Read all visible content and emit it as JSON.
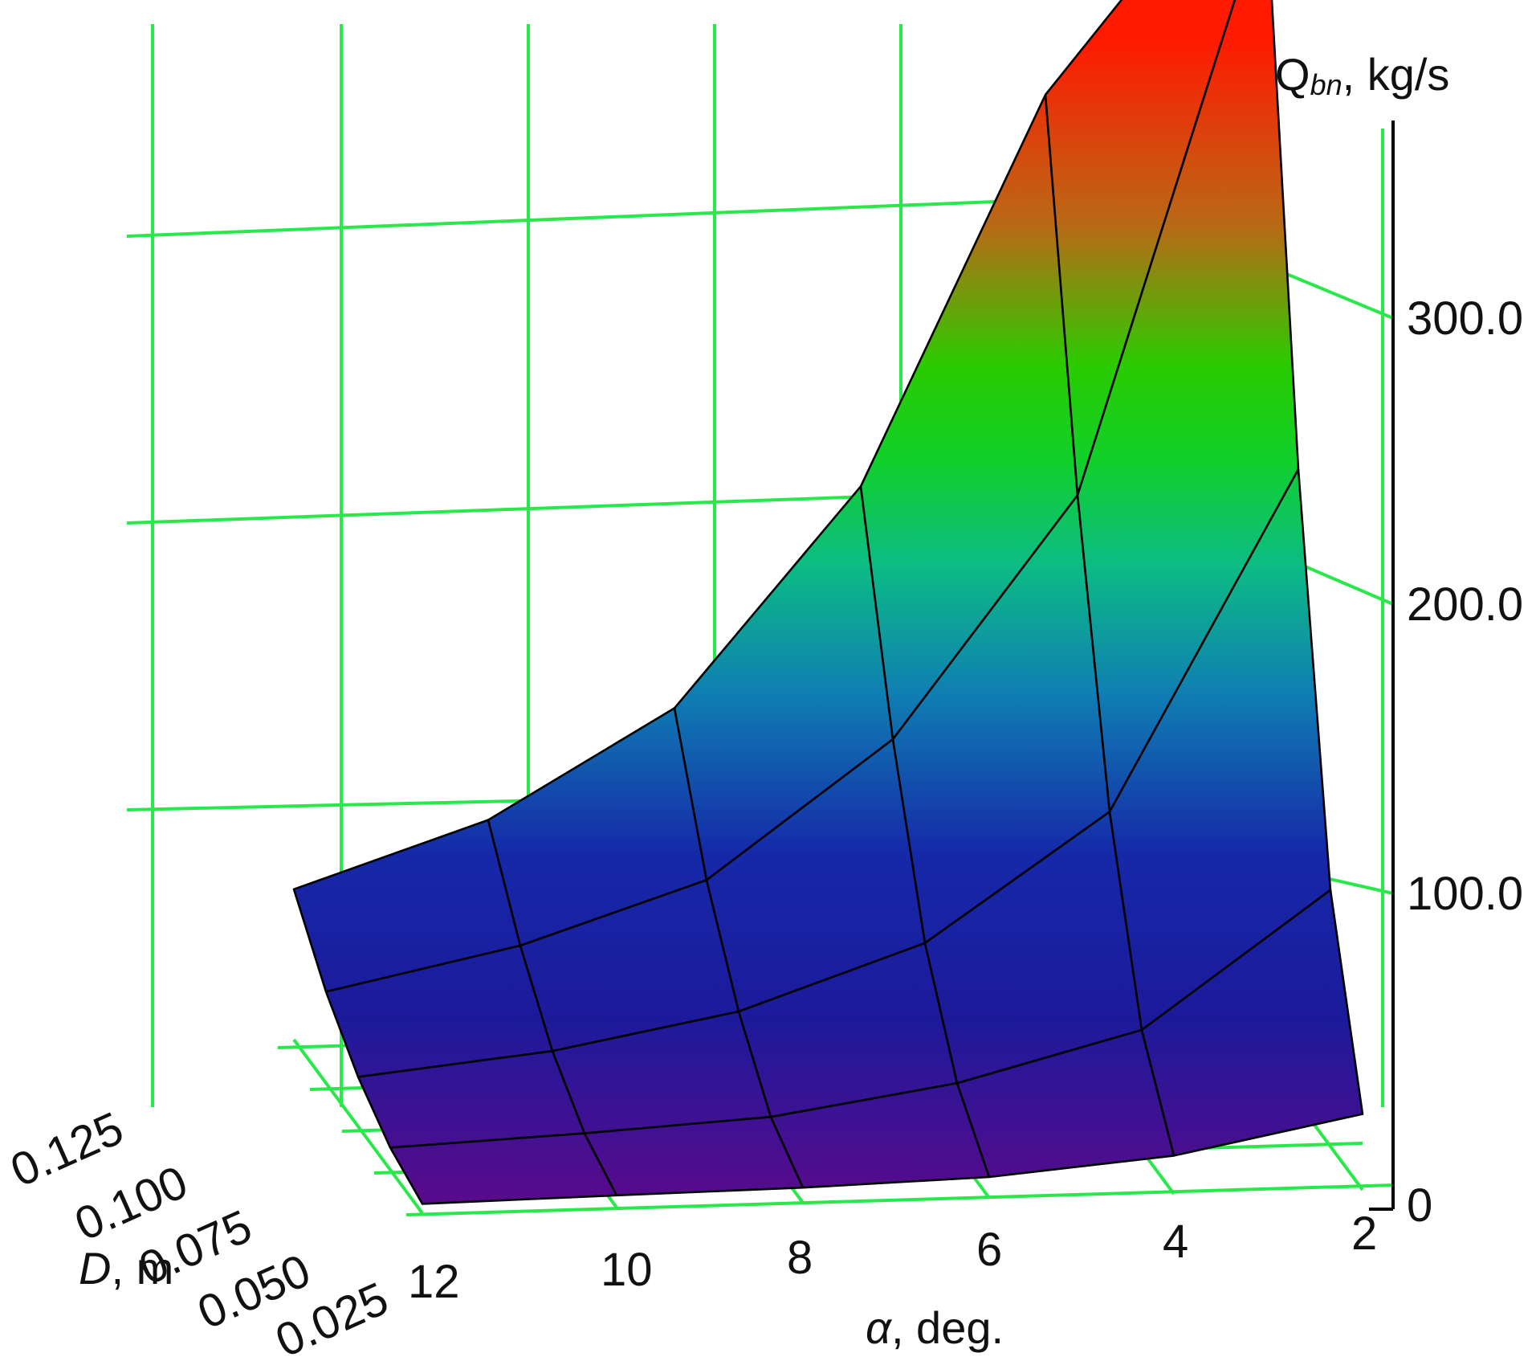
{
  "chart_data": {
    "type": "surface",
    "title": "",
    "zlabel": {
      "symbol": "Q",
      "subscript": "bn",
      "unit": ", kg/s"
    },
    "xlabel": {
      "symbol": "α",
      "unit": ", deg."
    },
    "ylabel": {
      "symbol": "D",
      "unit": ", m"
    },
    "x_ticks": [
      "12",
      "10",
      "8",
      "6",
      "4",
      "2"
    ],
    "y_ticks": [
      "0.125",
      "0.100",
      "0.075",
      "0.050",
      "0.025"
    ],
    "z_ticks": [
      "0",
      "100.0",
      "200.0",
      "300.0"
    ],
    "x": [
      12,
      10,
      8,
      6,
      4,
      2
    ],
    "y": [
      0.025,
      0.05,
      0.075,
      0.1,
      0.125
    ],
    "zlim": [
      0,
      400
    ],
    "values": [
      [
        1,
        2,
        3,
        5,
        11,
        24
      ],
      [
        6,
        9,
        13,
        23,
        40,
        87
      ],
      [
        16,
        23,
        35,
        57,
        101,
        218
      ],
      [
        31,
        45,
        66,
        113,
        196,
        410
      ],
      [
        52,
        74,
        111,
        186,
        320,
        680
      ]
    ],
    "grid": true,
    "colors": {
      "grid": "#28e84a",
      "mesh": "#000000",
      "low": "#5a0a8c",
      "mid": "#1a1aa0",
      "high": "#ff2000"
    }
  }
}
